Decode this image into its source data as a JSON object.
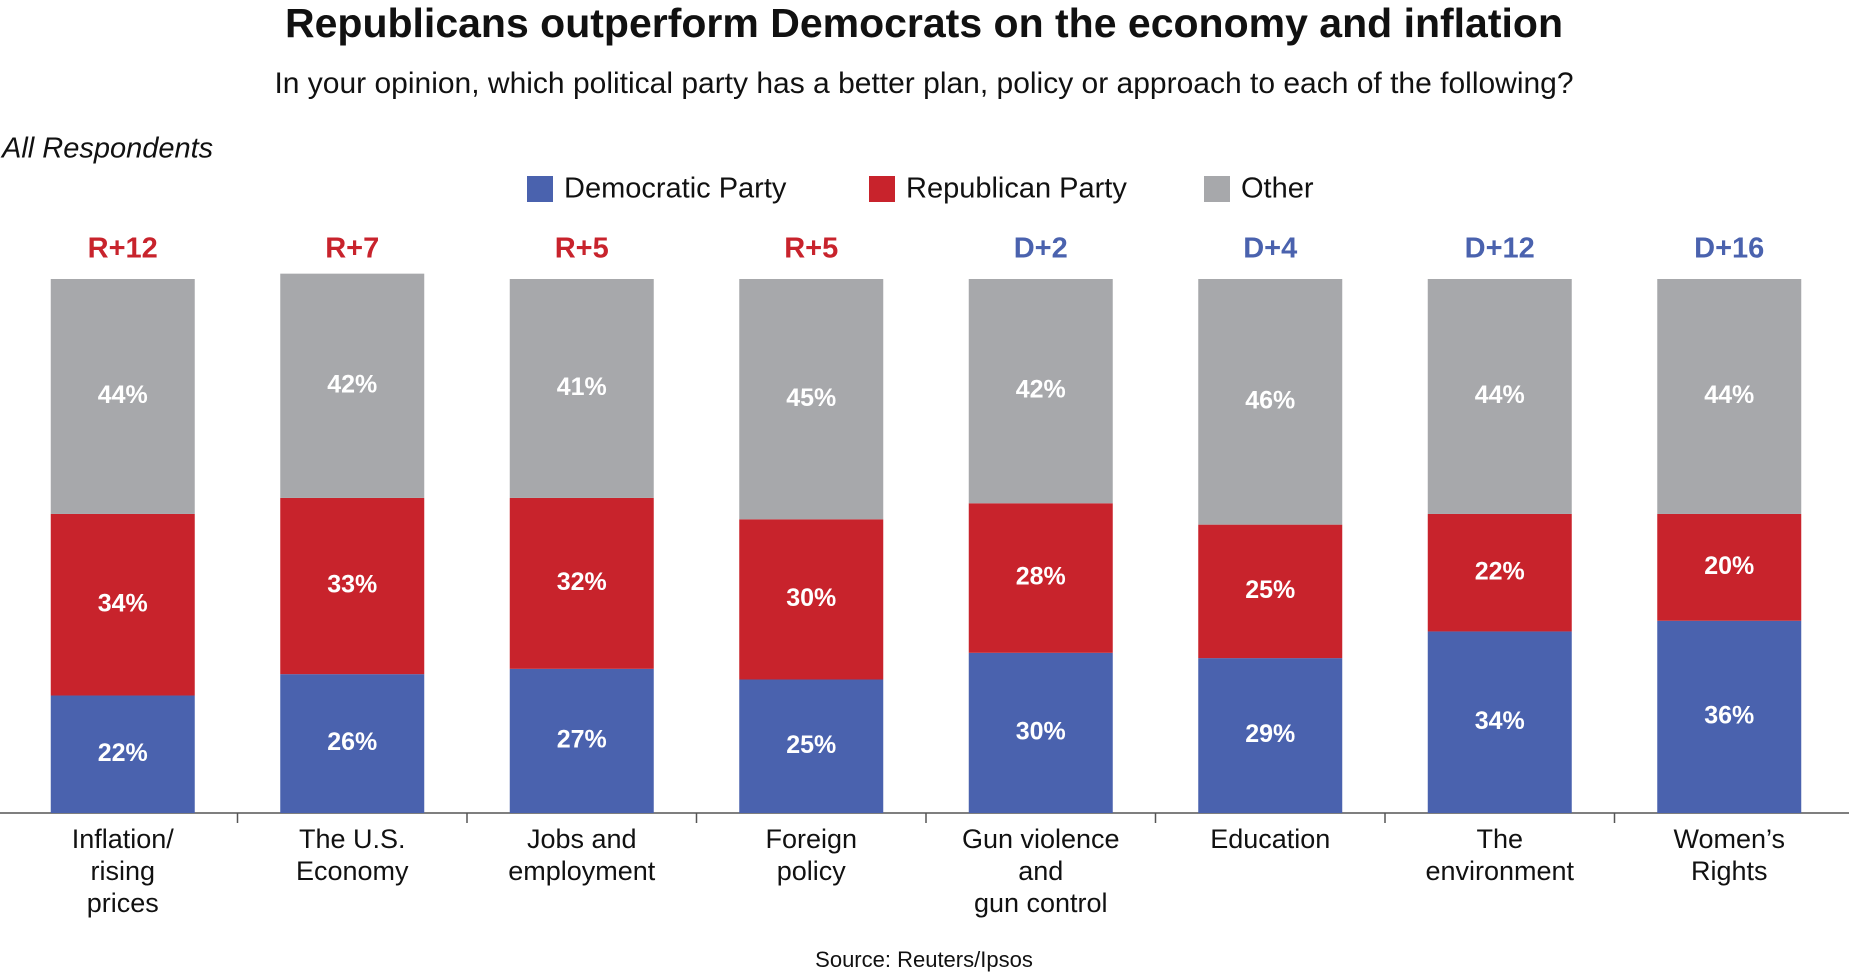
{
  "chart_data": {
    "type": "stacked_bar",
    "title": "Republicans outperform Democrats on the economy and inflation",
    "subtitle": "In your opinion, which political party has a better plan, policy or approach to each of the following?",
    "note": "All Respondents",
    "source": "Source: Reuters/Ipsos",
    "categories": [
      "Inflation/\nrising\nprices",
      "The U.S.\nEconomy",
      "Jobs and\nemployment",
      "Foreign\npolicy",
      "Gun violence\nand\ngun control",
      "Education",
      "The\nenvironment",
      "Women’s\nRights"
    ],
    "annotations": [
      {
        "label": "R+12",
        "color": "#c8232c"
      },
      {
        "label": "R+7",
        "color": "#c8232c"
      },
      {
        "label": "R+5",
        "color": "#c8232c"
      },
      {
        "label": "R+5",
        "color": "#c8232c"
      },
      {
        "label": "D+2",
        "color": "#4a62ae"
      },
      {
        "label": "D+4",
        "color": "#4a62ae"
      },
      {
        "label": "D+12",
        "color": "#4a62ae"
      },
      {
        "label": "D+16",
        "color": "#4a62ae"
      }
    ],
    "series": [
      {
        "name": "Democratic Party",
        "color": "#4a62ae",
        "values": [
          22,
          26,
          27,
          25,
          30,
          29,
          34,
          36
        ],
        "value_labels": [
          "22%",
          "26%",
          "27%",
          "25%",
          "30%",
          "29%",
          "34%",
          "36%"
        ]
      },
      {
        "name": "Republican Party",
        "color": "#c8232c",
        "values": [
          34,
          33,
          32,
          30,
          28,
          25,
          22,
          20
        ],
        "value_labels": [
          "34%",
          "33%",
          "32%",
          "30%",
          "28%",
          "25%",
          "22%",
          "20%"
        ]
      },
      {
        "name": "Other",
        "color": "#a7a8ab",
        "values": [
          44,
          42,
          41,
          45,
          42,
          46,
          44,
          44
        ],
        "value_labels": [
          "44%",
          "42%",
          "41%",
          "45%",
          "42%",
          "46%",
          "44%",
          "44%"
        ]
      }
    ]
  }
}
